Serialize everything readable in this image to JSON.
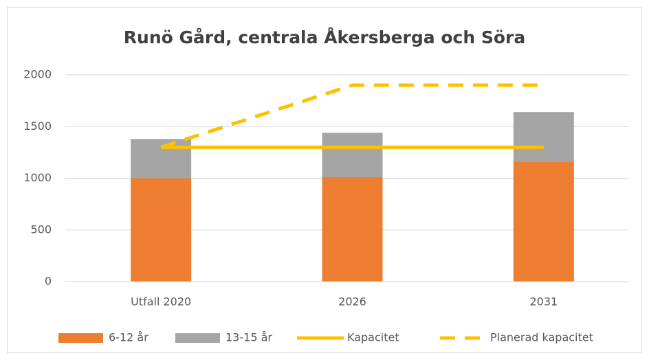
{
  "chart_data": {
    "type": "bar",
    "stacked": true,
    "title": "Runö Gård, centrala Åkersberga och Söra",
    "categories": [
      "Utfall 2020",
      "2026",
      "2031"
    ],
    "series": [
      {
        "name": "6-12 år",
        "type": "bar",
        "color": "#ed7d31",
        "values": [
          1000,
          1010,
          1160
        ]
      },
      {
        "name": "13-15 år",
        "type": "bar",
        "color": "#a5a5a5",
        "values": [
          380,
          430,
          480
        ]
      },
      {
        "name": "Kapacitet",
        "type": "line",
        "color": "#ffc000",
        "dashed": false,
        "values": [
          1300,
          1300,
          1300
        ]
      },
      {
        "name": "Planerad kapacitet",
        "type": "line",
        "color": "#ffc000",
        "dashed": true,
        "values": [
          1300,
          1900,
          1900
        ]
      }
    ],
    "ylim": [
      0,
      2000
    ],
    "yticks": [
      0,
      500,
      1000,
      1500,
      2000
    ],
    "grid": true,
    "legend": "bottom"
  }
}
